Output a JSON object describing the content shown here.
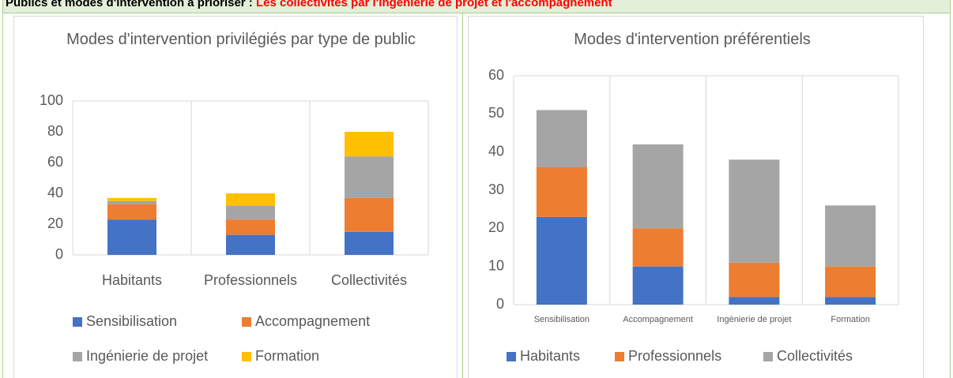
{
  "header": {
    "title": "Publics et modes d'intervention à prioriser :",
    "highlight": "Les collectivités par l'ingénierie de projet et l'accompagnement"
  },
  "chart_data": [
    {
      "type": "stacked-bar",
      "title": "Modes d'intervention privilégiés par type de public",
      "categories": [
        "Habitants",
        "Professionnels",
        "Collectivités"
      ],
      "series": [
        {
          "name": "Sensibilisation",
          "color": "#4472c4",
          "values": [
            23,
            13,
            15
          ]
        },
        {
          "name": "Accompagnement",
          "color": "#ed7d31",
          "values": [
            10,
            10,
            22
          ]
        },
        {
          "name": "Ingénierie de projet",
          "color": "#a5a5a5",
          "values": [
            2,
            9,
            27
          ]
        },
        {
          "name": "Formation",
          "color": "#ffc000",
          "values": [
            2,
            8,
            16
          ]
        }
      ],
      "ylim": [
        0,
        100
      ],
      "yticks": [
        0,
        20,
        40,
        60,
        80,
        100
      ],
      "legend": "bottom"
    },
    {
      "type": "stacked-bar",
      "title": "Modes d'intervention préférentiels",
      "categories": [
        "Sensibilisation",
        "Accompagnement",
        "Ingénierie de projet",
        "Formation"
      ],
      "series": [
        {
          "name": "Habitants",
          "color": "#4472c4",
          "values": [
            23,
            10,
            2,
            2
          ]
        },
        {
          "name": "Professionnels",
          "color": "#ed7d31",
          "values": [
            13,
            10,
            9,
            8
          ]
        },
        {
          "name": "Collectivités",
          "color": "#a5a5a5",
          "values": [
            15,
            22,
            27,
            16
          ]
        }
      ],
      "ylim": [
        0,
        60
      ],
      "yticks": [
        0,
        10,
        20,
        30,
        40,
        50,
        60
      ],
      "legend": "bottom"
    }
  ]
}
